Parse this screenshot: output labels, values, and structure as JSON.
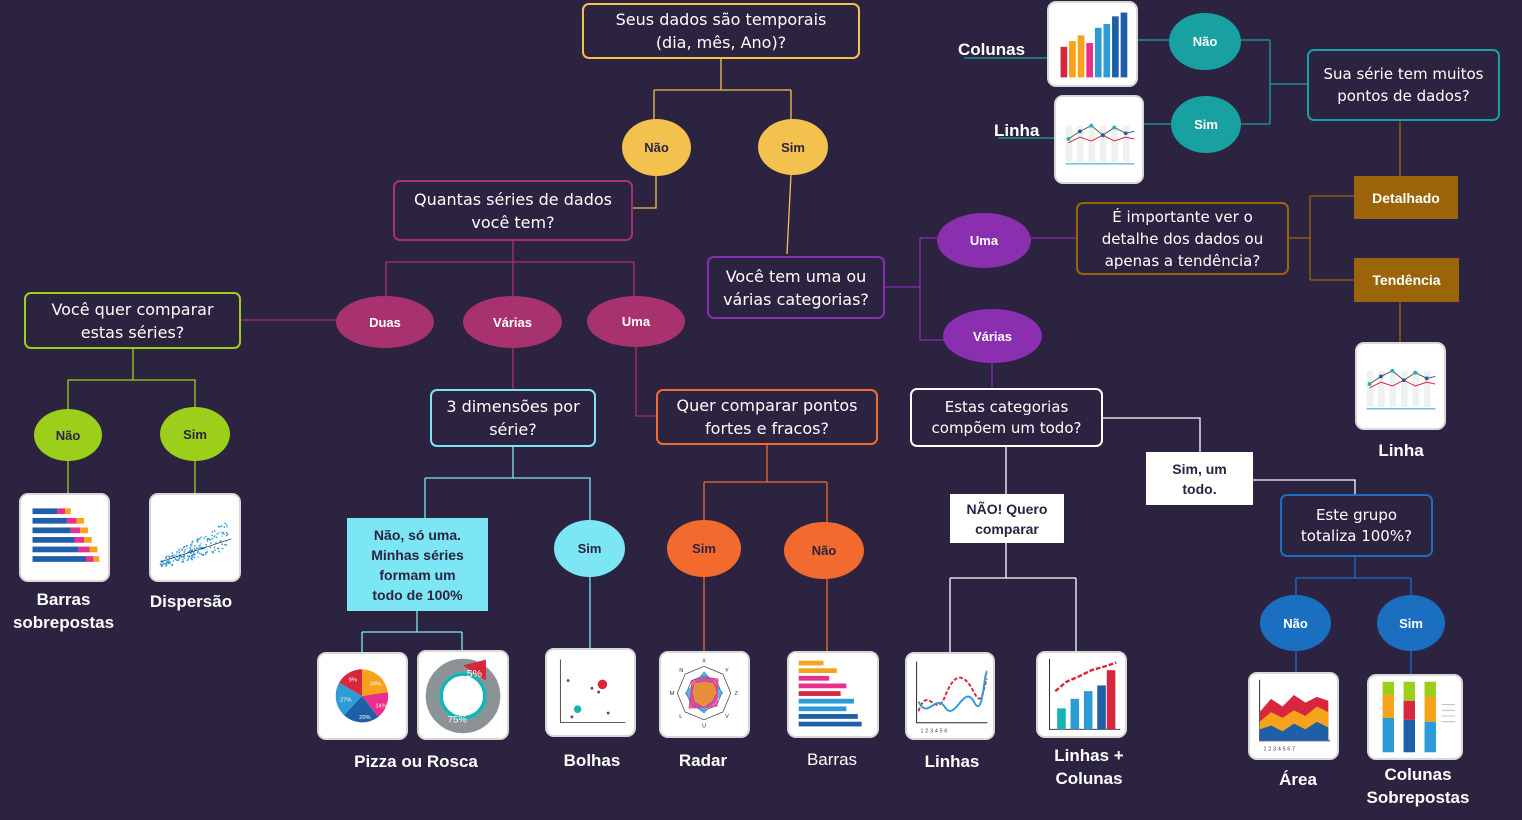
{
  "questions": {
    "temporal": "Seus dados são temporais\n(dia, mês, Ano)?",
    "series_count": "Quantas séries de dados\nvocê tem?",
    "compare_series": "Você quer comparar\nestas séries?",
    "three_dims": "3 dimensões por\nsérie?",
    "strong_weak": "Quer comparar pontos\nfortes e fracos?",
    "categories": "Você tem uma ou\nvárias categorias?",
    "compose_whole": "Estas categorias\ncompõem um todo?",
    "many_points": "Sua série tem muitos\npontos de dados?",
    "detail_trend": "É importante ver o\ndetalhe dos dados ou\napenas a tendência?",
    "total_100": "Este grupo\ntotaliza 100%?"
  },
  "answers": {
    "temporal_no": "Não",
    "temporal_yes": "Sim",
    "two": "Duas",
    "several": "Várias",
    "one": "Uma",
    "compare_no": "Não",
    "compare_yes": "Sim",
    "dims_yes": "Sim",
    "sw_yes": "Sim",
    "sw_no": "Não",
    "cat_one": "Uma",
    "cat_several": "Várias",
    "points_no": "Não",
    "points_yes": "Sim",
    "detail": "Detalhado",
    "trend": "Tendência",
    "yes_whole": "Sim, um\ntodo.",
    "no_compare": "NÃO! Quero\ncomparar",
    "no_single": "Não, só uma.\nMinhas séries\nformam um\ntodo de 100%",
    "total_no": "Não",
    "total_yes": "Sim"
  },
  "charts": {
    "stacked_bars": "Barras\nsobrepostas",
    "scatter": "Dispersão",
    "pie_donut": "Pizza ou Rosca",
    "bubbles": "Bolhas",
    "radar": "Radar",
    "bars": "Barras",
    "lines": "Linhas",
    "lines_columns": "Linhas +\nColunas",
    "area": "Área",
    "stacked_columns": "Colunas\nSobrepostas",
    "columns": "Colunas",
    "line_top": "Linha",
    "line_right": "Linha"
  },
  "thumbnail_text": {
    "pie_pct": [
      "9%",
      "30%",
      "27%",
      "14%",
      "20%"
    ],
    "donut_small": "5%",
    "donut_big": "75%",
    "radar_axes": [
      "X",
      "Y",
      "Z",
      "V",
      "U",
      "L",
      "M",
      "N"
    ]
  },
  "colors": {
    "background": "#2b2340",
    "not_temporal_branch": "#a8326e",
    "temporal_branch": "#8a2fb0",
    "two_series": "#9ccf1a",
    "several_series": "#7ce6f4",
    "strong_weak": "#f26a2d",
    "compose": "#1a6fc0",
    "time_answers": "#19a0a0",
    "detail_boxes": "#9b6408"
  }
}
